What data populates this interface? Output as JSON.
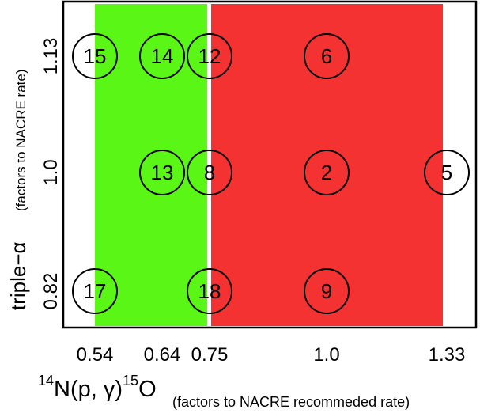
{
  "chart_data": {
    "type": "scatter",
    "x_tick_labels": [
      "0.54",
      "0.64",
      "0.75",
      "1.0",
      "1.33"
    ],
    "y_tick_labels": [
      "0.82",
      "1.0",
      "1.13"
    ],
    "xlabel": {
      "nuclide_pre": "14",
      "reaction": "N(p, γ)",
      "nuclide_post": "15",
      "product": "O",
      "note": "(factors to NACRE recommeded rate)"
    },
    "ylabel": {
      "main": "triple−α",
      "note": "(factors to NACRE rate)"
    },
    "regions": [
      {
        "x_start": 0.54,
        "x_end": 0.75,
        "color": "#5af716"
      },
      {
        "x_start": 0.75,
        "x_end": 1.33,
        "color": "#f53232"
      }
    ],
    "points": [
      {
        "label": "15",
        "x_index": 0,
        "y_index": 2
      },
      {
        "label": "14",
        "x_index": 1,
        "y_index": 2
      },
      {
        "label": "12",
        "x_index": 2,
        "y_index": 2
      },
      {
        "label": "6",
        "x_index": 3,
        "y_index": 2
      },
      {
        "label": "13",
        "x_index": 1,
        "y_index": 1
      },
      {
        "label": "8",
        "x_index": 2,
        "y_index": 1
      },
      {
        "label": "2",
        "x_index": 3,
        "y_index": 1
      },
      {
        "label": "5",
        "x_index": 4,
        "y_index": 1
      },
      {
        "label": "17",
        "x_index": 0,
        "y_index": 0
      },
      {
        "label": "18",
        "x_index": 2,
        "y_index": 0
      },
      {
        "label": "9",
        "x_index": 3,
        "y_index": 0
      }
    ]
  }
}
